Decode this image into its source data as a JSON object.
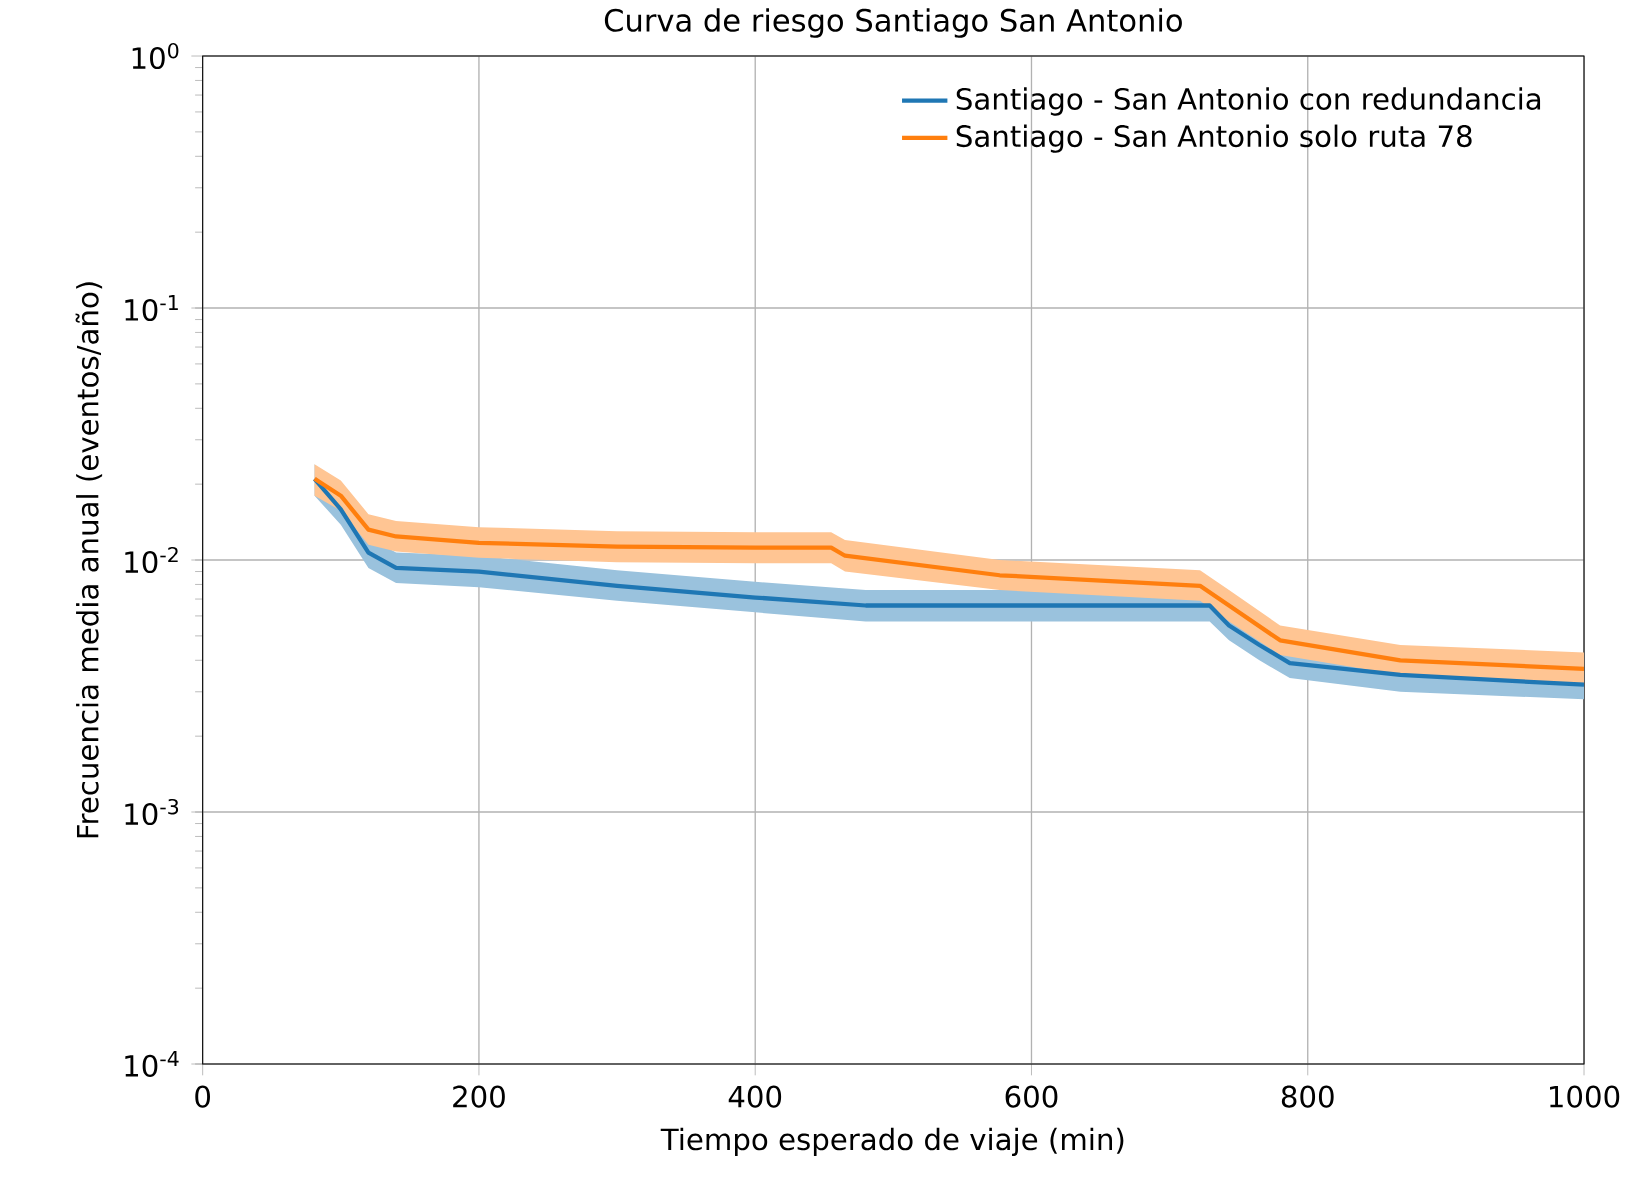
{
  "chart_data": {
    "type": "line",
    "title": "Curva de riesgo Santiago San Antonio",
    "xlabel": "Tiempo esperado de viaje (min)",
    "ylabel": "Frecuencia media anual (eventos/año)",
    "xlim": [
      0,
      1000
    ],
    "ylim": [
      0.0001,
      1
    ],
    "xticks": [
      0,
      200,
      400,
      600,
      800,
      1000
    ],
    "yticks": [
      {
        "value": 0.0001,
        "label": "10$^{-4}$"
      },
      {
        "value": 0.001,
        "label": "10$^{-3}$"
      },
      {
        "value": 0.01,
        "label": "10$^{-2}$"
      },
      {
        "value": 0.1,
        "label": "10$^{-1}$"
      },
      {
        "value": 1,
        "label": "10$^{0}$"
      }
    ],
    "log": "y",
    "grid": true,
    "legend": "top right",
    "series": [
      {
        "name": "Santiago - San Antonio con redundancia",
        "color": "#1f77b4",
        "x": [
          81,
          100,
          120,
          140,
          200,
          300,
          400,
          480,
          729,
          743,
          765,
          787,
          867,
          1000
        ],
        "values": [
          0.021,
          0.0159,
          0.0107,
          0.0093,
          0.009,
          0.0079,
          0.0071,
          0.0066,
          0.0066,
          0.0055,
          0.0046,
          0.0039,
          0.0035,
          0.0032
        ],
        "lower": [
          0.018,
          0.0138,
          0.0093,
          0.0081,
          0.0078,
          0.0069,
          0.0062,
          0.0057,
          0.0057,
          0.0048,
          0.004,
          0.0034,
          0.003,
          0.0028
        ],
        "upper": [
          0.024,
          0.0183,
          0.0123,
          0.0107,
          0.0104,
          0.0091,
          0.0082,
          0.0076,
          0.0076,
          0.0063,
          0.0053,
          0.0045,
          0.004,
          0.0037
        ]
      },
      {
        "name": "Santiago - San Antonio solo ruta 78",
        "color": "#ff7f0e",
        "x": [
          81,
          100,
          120,
          140,
          200,
          300,
          400,
          455,
          465,
          577,
          722,
          743,
          780,
          867,
          1000
        ],
        "values": [
          0.021,
          0.018,
          0.0132,
          0.0124,
          0.0117,
          0.0113,
          0.0112,
          0.0112,
          0.0104,
          0.0087,
          0.0079,
          0.0066,
          0.0048,
          0.004,
          0.0037
        ],
        "lower": [
          0.018,
          0.0157,
          0.0115,
          0.0108,
          0.0102,
          0.0098,
          0.0097,
          0.0097,
          0.009,
          0.0076,
          0.0069,
          0.0057,
          0.0042,
          0.0035,
          0.0032
        ],
        "upper": [
          0.024,
          0.0207,
          0.0152,
          0.0143,
          0.0135,
          0.013,
          0.0129,
          0.0129,
          0.012,
          0.01,
          0.0091,
          0.0076,
          0.0055,
          0.0046,
          0.0043
        ]
      }
    ]
  }
}
